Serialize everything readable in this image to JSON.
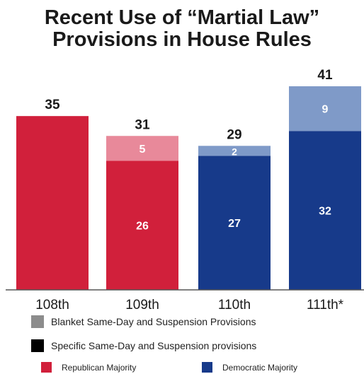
{
  "title_line1": "Recent Use of “Martial Law”",
  "title_line2": "Provisions in House Rules",
  "chart_data": {
    "type": "bar",
    "stacked": true,
    "categories": [
      "108th",
      "109th",
      "110th",
      "111th*"
    ],
    "series": [
      {
        "values": [
          35,
          26,
          27,
          32
        ]
      },
      {
        "values": [
          0,
          5,
          2,
          9
        ]
      }
    ],
    "totals": [
      35,
      31,
      29,
      41
    ],
    "majority": [
      "Republican",
      "Republican",
      "Democratic",
      "Democratic"
    ],
    "ylim": [
      0,
      42
    ],
    "grid": false
  },
  "legend": {
    "blanket": "Blanket Same-Day and Suspension Provisions",
    "specific": "Specific Same-Day and Suspension provisions",
    "republican": "Republican Majority",
    "democratic": "Democratic Majority"
  },
  "colors": {
    "republican_specific": "#d1203b",
    "republican_blanket": "#e8899a",
    "democratic_specific": "#173a8a",
    "democratic_blanket": "#7f9ac8",
    "legend_blanket": "#8c8c8c",
    "legend_specific": "#000000",
    "axis": "#555555",
    "text": "#1a1a1a"
  }
}
